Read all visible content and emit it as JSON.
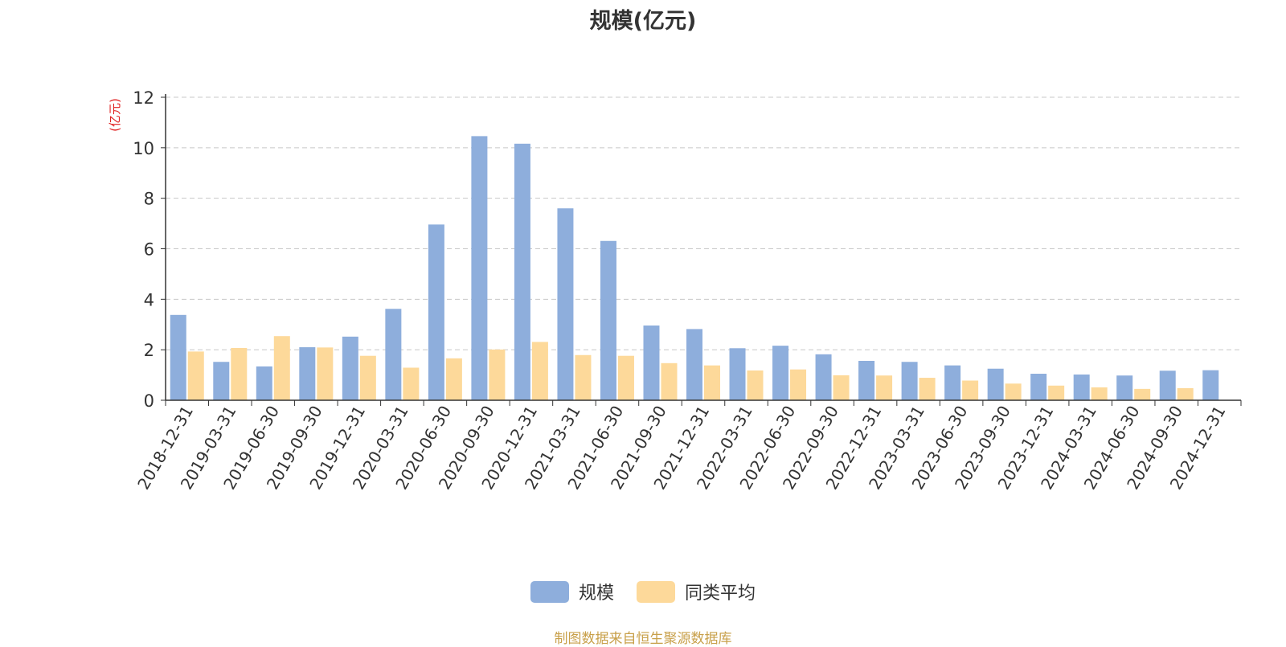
{
  "chart_data": {
    "type": "bar",
    "title": "规模(亿元)",
    "ylabel": "(亿元)",
    "xlabel": "",
    "ylim": [
      0,
      12
    ],
    "yticks": [
      0,
      2,
      4,
      6,
      8,
      10,
      12
    ],
    "grid": true,
    "legend_position": "bottom",
    "categories": [
      "2018-12-31",
      "2019-03-31",
      "2019-06-30",
      "2019-09-30",
      "2019-12-31",
      "2020-03-31",
      "2020-06-30",
      "2020-09-30",
      "2020-12-31",
      "2021-03-31",
      "2021-06-30",
      "2021-09-30",
      "2021-12-31",
      "2022-03-31",
      "2022-06-30",
      "2022-09-30",
      "2022-12-31",
      "2023-03-31",
      "2023-06-30",
      "2023-09-30",
      "2023-12-31",
      "2024-03-31",
      "2024-06-30",
      "2024-09-30",
      "2024-12-31"
    ],
    "series": [
      {
        "name": "规模",
        "color": "#8eaedc",
        "values": [
          3.38,
          1.52,
          1.34,
          2.1,
          2.52,
          3.62,
          6.96,
          10.46,
          10.16,
          7.6,
          6.31,
          2.96,
          2.82,
          2.06,
          2.16,
          1.82,
          1.56,
          1.52,
          1.38,
          1.25,
          1.05,
          1.02,
          0.98,
          1.17,
          1.19
        ]
      },
      {
        "name": "同类平均",
        "color": "#fdd99a",
        "values": [
          1.93,
          2.07,
          2.54,
          2.09,
          1.76,
          1.29,
          1.66,
          2.01,
          2.31,
          1.79,
          1.76,
          1.47,
          1.38,
          1.18,
          1.22,
          0.99,
          0.98,
          0.89,
          0.78,
          0.66,
          0.58,
          0.51,
          0.45,
          0.48,
          null
        ]
      }
    ]
  },
  "footer": {
    "source": "制图数据来自恒生聚源数据库"
  }
}
